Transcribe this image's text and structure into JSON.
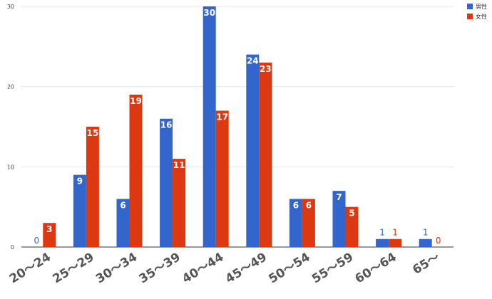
{
  "chart_data": {
    "type": "bar",
    "categories": [
      "20〜24",
      "25〜29",
      "30〜34",
      "35〜39",
      "40〜44",
      "45〜49",
      "50〜54",
      "55〜59",
      "60〜64",
      "65〜"
    ],
    "series": [
      {
        "name": "男性",
        "color": "#3366cc",
        "values": [
          0,
          9,
          6,
          16,
          30,
          24,
          6,
          7,
          1,
          1
        ]
      },
      {
        "name": "女性",
        "color": "#dc3912",
        "values": [
          3,
          15,
          19,
          11,
          17,
          23,
          6,
          5,
          1,
          0
        ]
      }
    ],
    "ylim": [
      0,
      30
    ],
    "yticks": [
      0,
      10,
      20,
      30
    ],
    "grid": true,
    "legend": "top-right",
    "data_labels": true
  }
}
